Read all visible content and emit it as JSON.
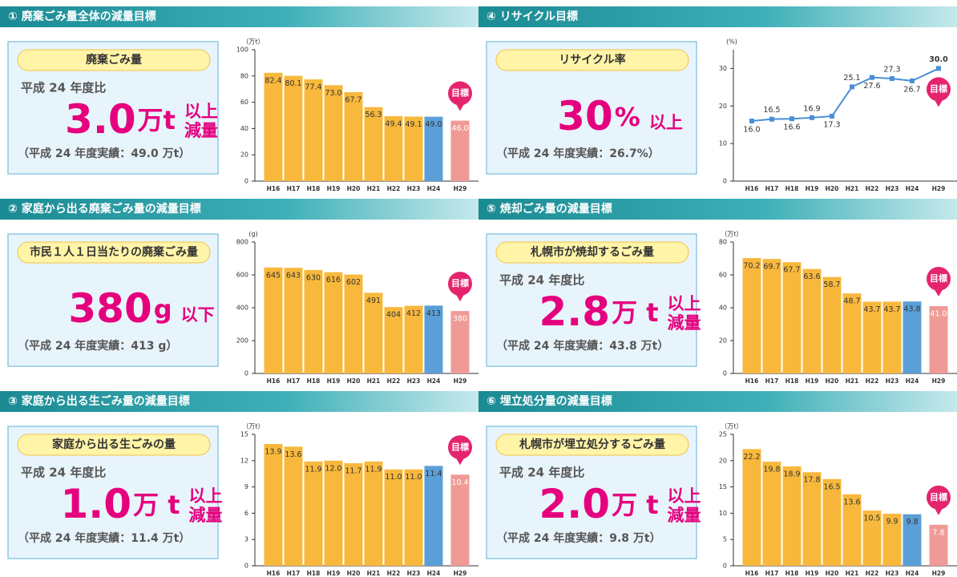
{
  "panels": [
    {
      "header": "① 廃棄ごみ量全体の減量目標",
      "pill": "廃棄ごみ量",
      "basis": "平成 24 年度比",
      "big": "3.0",
      "unit": "万t",
      "qualifier": [
        "以上",
        "減量"
      ],
      "note": "（平成 24 年度実績：49.0 万t）"
    },
    {
      "header": "② 家庭から出る廃棄ごみ量の減量目標",
      "pill": "市民１人１日当たりの廃棄ごみ量",
      "big": "380",
      "unit": "g",
      "qualifier": [
        "以下"
      ],
      "note": "（平成 24 年度実績：413 g）"
    },
    {
      "header": "③ 家庭から出る生ごみ量の減量目標",
      "pill": "家庭から出る生ごみの量",
      "basis": "平成 24 年度比",
      "big": "1.0",
      "unit": "万 t",
      "qualifier": [
        "以上",
        "減量"
      ],
      "note": "（平成 24 年度実績：11.4 万t）"
    },
    {
      "header": "④ リサイクル目標",
      "pill": "リサイクル率",
      "big": "30",
      "unit": "%",
      "qualifier": [
        "以上"
      ],
      "note": "（平成 24 年度実績：26.7%）"
    },
    {
      "header": "⑤ 焼却ごみ量の減量目標",
      "pill": "札幌市が焼却するごみ量",
      "basis": "平成 24 年度比",
      "big": "2.8",
      "unit": "万 t",
      "qualifier": [
        "以上",
        "減量"
      ],
      "note": "（平成 24 年度実績：43.8 万t）"
    },
    {
      "header": "⑥ 埋立処分量の減量目標",
      "pill": "札幌市が埋立処分するごみ量",
      "basis": "平成 24 年度比",
      "big": "2.0",
      "unit": "万 t",
      "qualifier": [
        "以上",
        "減量"
      ],
      "note": "（平成 24 年度実績：9.8 万t）"
    }
  ],
  "chart_data": [
    {
      "type": "bar",
      "y_unit": "（万t）",
      "target_label": "目標",
      "categories": [
        "H16",
        "H17",
        "H18",
        "H19",
        "H20",
        "H21",
        "H22",
        "H23",
        "H24",
        "H29"
      ],
      "values": [
        82.4,
        80.1,
        77.4,
        73.0,
        67.7,
        56.3,
        49.4,
        49.1,
        49.0,
        46.0
      ],
      "value_labels": [
        "82.4",
        "80.1",
        "77.4",
        "73.0",
        "67.7",
        "56.3",
        "49.4",
        "49.1",
        "49.0",
        "46.0"
      ],
      "colors": [
        "#f8b83c",
        "#f8b83c",
        "#f8b83c",
        "#f8b83c",
        "#f8b83c",
        "#f8b83c",
        "#f8b83c",
        "#f8b83c",
        "#5b9fd8",
        "#f09a96"
      ],
      "ylim": [
        0,
        100
      ],
      "yticks": [
        0,
        20,
        40,
        60,
        80,
        100
      ]
    },
    {
      "type": "bar",
      "y_unit": "(g)",
      "target_label": "目標",
      "categories": [
        "H16",
        "H17",
        "H18",
        "H19",
        "H20",
        "H21",
        "H22",
        "H23",
        "H24",
        "H29"
      ],
      "values": [
        645,
        643,
        630,
        616,
        602,
        491,
        404,
        412,
        413,
        380
      ],
      "colors": [
        "#f8b83c",
        "#f8b83c",
        "#f8b83c",
        "#f8b83c",
        "#f8b83c",
        "#f8b83c",
        "#f8b83c",
        "#f8b83c",
        "#5b9fd8",
        "#f09a96"
      ],
      "ylim": [
        0,
        800
      ],
      "yticks": [
        0,
        200,
        400,
        600,
        800
      ]
    },
    {
      "type": "bar",
      "y_unit": "（万t）",
      "target_label": "目標",
      "categories": [
        "H16",
        "H17",
        "H18",
        "H19",
        "H20",
        "H21",
        "H22",
        "H23",
        "H24",
        "H29"
      ],
      "values": [
        13.9,
        13.6,
        11.9,
        12.0,
        11.7,
        11.9,
        11.0,
        11.0,
        11.4,
        10.4
      ],
      "value_labels": [
        "13.9",
        "13.6",
        "11.9",
        "12.0",
        "11.7",
        "11.9",
        "11.0",
        "11.0",
        "11.4",
        "10.4"
      ],
      "colors": [
        "#f8b83c",
        "#f8b83c",
        "#f8b83c",
        "#f8b83c",
        "#f8b83c",
        "#f8b83c",
        "#f8b83c",
        "#f8b83c",
        "#5b9fd8",
        "#f09a96"
      ],
      "ylim": [
        0,
        15
      ],
      "yticks": [
        0,
        3,
        6,
        9,
        12,
        15
      ]
    },
    {
      "type": "line",
      "y_unit": "(%)",
      "target_label": "目標",
      "categories": [
        "H16",
        "H17",
        "H18",
        "H19",
        "H20",
        "H21",
        "H22",
        "H23",
        "H24",
        "H29"
      ],
      "values": [
        16.0,
        16.5,
        16.6,
        16.9,
        17.3,
        25.1,
        27.6,
        27.3,
        26.7,
        30.0
      ],
      "value_labels": [
        "16.0",
        "16.5",
        "16.6",
        "16.9",
        "17.3",
        "25.1",
        "27.6",
        "27.3",
        "26.7",
        "30.0"
      ],
      "color": "#4a8fd6",
      "ylim": [
        0,
        35
      ],
      "yticks": [
        0,
        10,
        20,
        30
      ]
    },
    {
      "type": "bar",
      "y_unit": "（万t）",
      "target_label": "目標",
      "categories": [
        "H16",
        "H17",
        "H18",
        "H19",
        "H20",
        "H21",
        "H22",
        "H23",
        "H24",
        "H29"
      ],
      "values": [
        70.2,
        69.7,
        67.7,
        63.6,
        58.7,
        48.7,
        43.7,
        43.7,
        43.8,
        41.0
      ],
      "value_labels": [
        "70.2",
        "69.7",
        "67.7",
        "63.6",
        "58.7",
        "48.7",
        "43.7",
        "43.7",
        "43.8",
        "41.0"
      ],
      "colors": [
        "#f8b83c",
        "#f8b83c",
        "#f8b83c",
        "#f8b83c",
        "#f8b83c",
        "#f8b83c",
        "#f8b83c",
        "#f8b83c",
        "#5b9fd8",
        "#f09a96"
      ],
      "ylim": [
        0,
        80
      ],
      "yticks": [
        0,
        20,
        40,
        60,
        80
      ]
    },
    {
      "type": "bar",
      "y_unit": "（万t）",
      "target_label": "目標",
      "categories": [
        "H16",
        "H17",
        "H18",
        "H19",
        "H20",
        "H21",
        "H22",
        "H23",
        "H24",
        "H29"
      ],
      "values": [
        22.2,
        19.8,
        18.9,
        17.8,
        16.5,
        13.6,
        10.5,
        9.9,
        9.8,
        7.8
      ],
      "value_labels": [
        "22.2",
        "19.8",
        "18.9",
        "17.8",
        "16.5",
        "13.6",
        "10.5",
        "9.9",
        "9.8",
        "7.8"
      ],
      "colors": [
        "#f8b83c",
        "#f8b83c",
        "#f8b83c",
        "#f8b83c",
        "#f8b83c",
        "#f8b83c",
        "#f8b83c",
        "#f8b83c",
        "#5b9fd8",
        "#f09a96"
      ],
      "ylim": [
        0,
        25
      ],
      "yticks": [
        0,
        5,
        10,
        15,
        20,
        25
      ]
    }
  ]
}
